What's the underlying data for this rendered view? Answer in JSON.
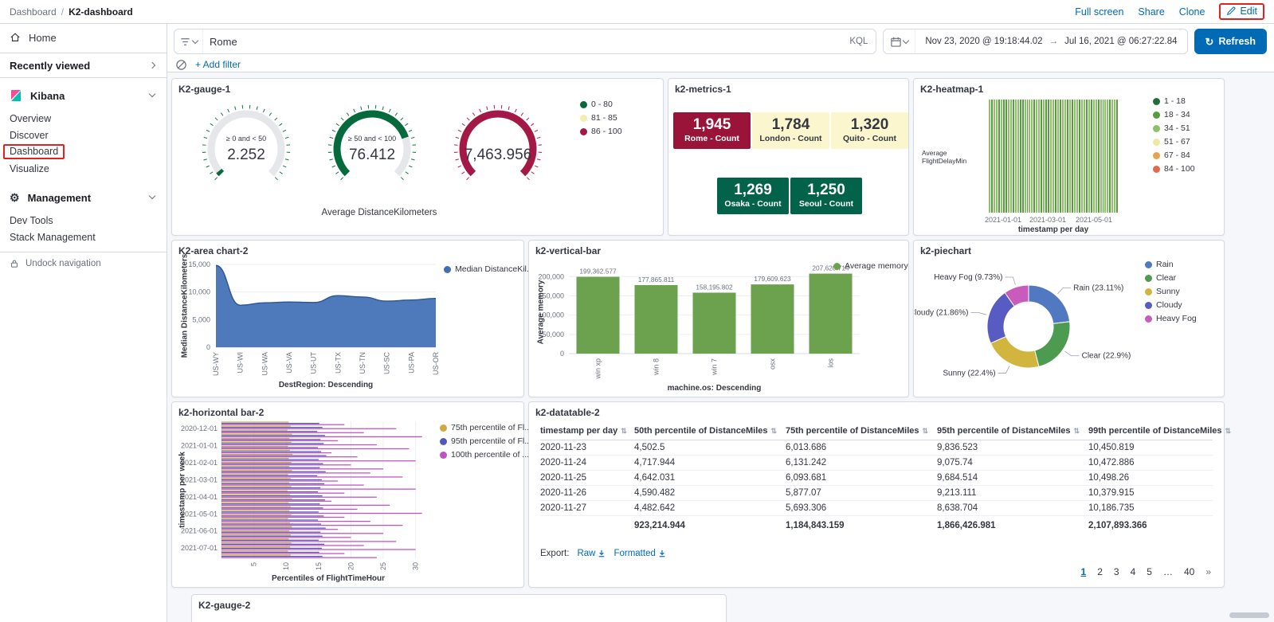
{
  "colors": {
    "link_blue": "#006bb4",
    "primary_button": "#006bb4",
    "highlight_red": "#e0231e",
    "panel_border": "#d3dae6",
    "page_bg": "#f5f7fa",
    "text_dark": "#343741",
    "text_subdued": "#69707d"
  },
  "topbar": {
    "breadcrumb_root": "Dashboard",
    "breadcrumb_sep": "/",
    "breadcrumb_current": "K2-dashboard",
    "full_screen": "Full screen",
    "share": "Share",
    "clone": "Clone",
    "edit": "Edit"
  },
  "sidebar": {
    "home": "Home",
    "recently_viewed": "Recently viewed",
    "kibana_section": "Kibana",
    "kibana_items": [
      "Overview",
      "Discover",
      "Dashboard",
      "Visualize"
    ],
    "selected_item": "Dashboard",
    "management_section": "Management",
    "management_items": [
      "Dev Tools",
      "Stack Management"
    ],
    "undock": "Undock navigation"
  },
  "querybar": {
    "query": "Rome",
    "kql_label": "KQL",
    "date_from": "Nov 23, 2020 @ 19:18:44.02",
    "date_arrow": "→",
    "date_to": "Jul 16, 2021 @ 06:27:22.84",
    "refresh_label": "Refresh",
    "add_filter": "+ Add filter"
  },
  "panels": {
    "gauge1": {
      "title": "K2-gauge-1",
      "type": "gauge",
      "gauges": [
        {
          "label": "≥ 0 and < 50",
          "display": "2.252",
          "value": 2.252,
          "color": "#056b3d"
        },
        {
          "label": "≥ 50 and < 100",
          "display": "76.412",
          "value": 76.412,
          "color": "#056b3d"
        },
        {
          "label": "",
          "display": "7,463.956",
          "value": 7463.956,
          "color": "#a31845"
        }
      ],
      "legend": [
        {
          "label": "0 - 80",
          "color": "#056b3d"
        },
        {
          "label": "81 - 85",
          "color": "#f3eeb0"
        },
        {
          "label": "86 - 100",
          "color": "#a31845"
        }
      ],
      "footer": "Average DistanceKilometers"
    },
    "metrics": {
      "title": "k2-metrics-1",
      "tiles": [
        {
          "value": "1,945",
          "label": "Rome - Count",
          "bg": "#991438",
          "fg": "#ffffff"
        },
        {
          "value": "1,784",
          "label": "London - Count",
          "bg": "#fbf6cd",
          "fg": "#343741"
        },
        {
          "value": "1,320",
          "label": "Quito - Count",
          "bg": "#fbf6cd",
          "fg": "#343741"
        },
        {
          "value": "1,269",
          "label": "Osaka - Count",
          "bg": "#03624a",
          "fg": "#ffffff"
        },
        {
          "value": "1,250",
          "label": "Seoul - Count",
          "bg": "#03624a",
          "fg": "#ffffff"
        }
      ]
    },
    "heatmap": {
      "title": "K2-heatmap-1",
      "type": "heatmap",
      "y_label": "Average FlightDelayMin",
      "x_label": "timestamp per day",
      "x_ticks": [
        "2021-01-01",
        "2021-03-01",
        "2021-05-01"
      ],
      "legend": [
        {
          "label": "1 - 18",
          "color": "#216f36"
        },
        {
          "label": "18 - 34",
          "color": "#549e3f"
        },
        {
          "label": "34 - 51",
          "color": "#8cc168"
        },
        {
          "label": "51 - 67",
          "color": "#ede8a2"
        },
        {
          "label": "67 - 84",
          "color": "#e8a352"
        },
        {
          "label": "84 - 100",
          "color": "#e26b4d"
        }
      ],
      "cells": [
        2,
        1,
        2,
        2,
        1,
        2,
        1,
        1,
        2,
        2,
        1,
        2,
        2,
        1,
        1,
        2,
        1,
        2,
        2,
        1,
        2,
        2,
        1,
        2,
        1,
        1,
        2,
        2,
        1,
        2,
        1,
        2,
        2,
        1,
        2,
        1,
        2,
        2,
        1,
        2,
        2,
        1,
        2,
        1,
        2,
        2,
        1,
        2,
        1,
        2,
        2,
        1,
        2,
        2,
        1
      ]
    },
    "area": {
      "title": "K2-area chart-2",
      "type": "area",
      "series_name": "Median DistanceKil...",
      "color": "#3f6fb5",
      "line_color": "#2d568f",
      "categories": [
        "US-WY",
        "US-WI",
        "US-WA",
        "US-VA",
        "US-UT",
        "US-TX",
        "US-TN",
        "US-SC",
        "US-PA",
        "US-OR"
      ],
      "values": [
        14800,
        7600,
        8050,
        8200,
        8100,
        9350,
        9100,
        8350,
        8550,
        8850
      ],
      "y_ticks": [
        "0",
        "5,000",
        "10,000",
        "15,000"
      ],
      "y_max": 15000,
      "y_label": "Median DistanceKilometers",
      "x_label": "DestRegion: Descending"
    },
    "vbar": {
      "title": "k2-vertical-bar",
      "type": "bar",
      "series_name": "Average memory",
      "color": "#6ca24d",
      "categories": [
        "win xp",
        "win 8",
        "win 7",
        "osx",
        "ios"
      ],
      "values": [
        199362.577,
        177865.811,
        158195.802,
        179609.623,
        207620.714
      ],
      "value_labels": [
        "199,362.577",
        "177,865.811",
        "158,195.802",
        "179,609.623",
        "207,620.714"
      ],
      "y_ticks": [
        "0",
        "50,000",
        "100,000",
        "150,000",
        "200,000"
      ],
      "y_axis_max": 200000,
      "y_label": "Average memory",
      "x_label": "machine.os: Descending"
    },
    "pie": {
      "title": "k2-piechart",
      "type": "pie",
      "slices": [
        {
          "label": "Rain",
          "pct": 23.11,
          "color": "#5179c1",
          "callout": "Rain (23.11%)"
        },
        {
          "label": "Clear",
          "pct": 22.9,
          "color": "#4d9a51",
          "callout": "Clear (22.9%)"
        },
        {
          "label": "Sunny",
          "pct": 22.4,
          "color": "#d2b53e",
          "callout": "Sunny (22.4%)"
        },
        {
          "label": "Cloudy",
          "pct": 21.86,
          "color": "#585cc2",
          "callout": "Cloudy (21.86%)"
        },
        {
          "label": "Heavy Fog",
          "pct": 9.73,
          "color": "#c85bbc",
          "callout": "Heavy Fog (9.73%)"
        }
      ]
    },
    "hbar": {
      "title": "k2-horizontal bar-2",
      "type": "bar-horizontal",
      "y_label": "timestamp per week",
      "x_label": "Percentiles of FlightTimeHour",
      "y_ticks": [
        "2020-12-01",
        "2021-01-01",
        "2021-02-01",
        "2021-03-01",
        "2021-04-01",
        "2021-05-01",
        "2021-06-01",
        "2021-07-01"
      ],
      "x_ticks": [
        "5",
        "10",
        "15",
        "20",
        "25",
        "30"
      ],
      "series": [
        {
          "name": "75th percentile of Fl...",
          "color": "#d2a73f",
          "values": [
            10.4,
            10.7,
            10.2,
            10.9,
            10.5,
            10.8,
            10.3,
            10.6,
            11.0,
            10.4,
            10.8,
            10.5,
            10.9,
            10.3,
            10.7,
            10.5,
            10.8,
            10.2,
            10.6,
            10.9,
            10.4,
            10.7,
            10.5,
            10.8,
            10.3,
            10.6,
            10.9,
            10.5,
            10.7,
            10.4,
            10.8,
            10.6,
            10.3,
            10.7
          ]
        },
        {
          "name": "95th percentile of Fl...",
          "color": "#5158bb",
          "values": [
            15.1,
            15.6,
            14.8,
            16.0,
            15.3,
            15.8,
            14.9,
            15.4,
            16.2,
            15.0,
            15.7,
            15.2,
            16.1,
            14.8,
            15.5,
            15.9,
            15.3,
            14.9,
            15.6,
            16.0,
            15.2,
            15.7,
            15.0,
            15.8,
            14.9,
            15.4,
            16.1,
            15.3,
            15.6,
            15.0,
            15.9,
            15.5,
            15.1,
            15.6
          ]
        },
        {
          "name": "100th percentile of ...",
          "color": "#c44fc4",
          "values": [
            19,
            27,
            22,
            31,
            18,
            24,
            29,
            17,
            21,
            30,
            20,
            25,
            23,
            28,
            18,
            22,
            30,
            19,
            24,
            17,
            26,
            21,
            31,
            19,
            23,
            28,
            18,
            25,
            20,
            27,
            22,
            30,
            19,
            24
          ]
        }
      ]
    },
    "table": {
      "title": "k2-datatable-2",
      "type": "table",
      "columns": [
        "timestamp per day",
        "50th percentile of DistanceMiles",
        "75th percentile of DistanceMiles",
        "95th percentile of DistanceMiles",
        "99th percentile of DistanceMiles"
      ],
      "rows": [
        [
          "2020-11-23",
          "4,502.5",
          "6,013.686",
          "9,836.523",
          "10,450.819"
        ],
        [
          "2020-11-24",
          "4,717.944",
          "6,131.242",
          "9,075.74",
          "10,472.886"
        ],
        [
          "2020-11-25",
          "4,642.031",
          "6,093.681",
          "9,684.514",
          "10,498.26"
        ],
        [
          "2020-11-26",
          "4,590.482",
          "5,877.07",
          "9,213.111",
          "10,379.915"
        ],
        [
          "2020-11-27",
          "4,482.642",
          "5,693.306",
          "8,638.704",
          "10,186.735"
        ]
      ],
      "totals": [
        "",
        "923,214.944",
        "1,184,843.159",
        "1,866,426.981",
        "2,107,893.366"
      ],
      "export_label": "Export:",
      "export_raw": "Raw",
      "export_formatted": "Formatted",
      "pagination": [
        "1",
        "2",
        "3",
        "4",
        "5",
        "…",
        "40"
      ],
      "active_page": "1",
      "next_label": "»"
    },
    "gauge2": {
      "title": "K2-gauge-2"
    }
  }
}
